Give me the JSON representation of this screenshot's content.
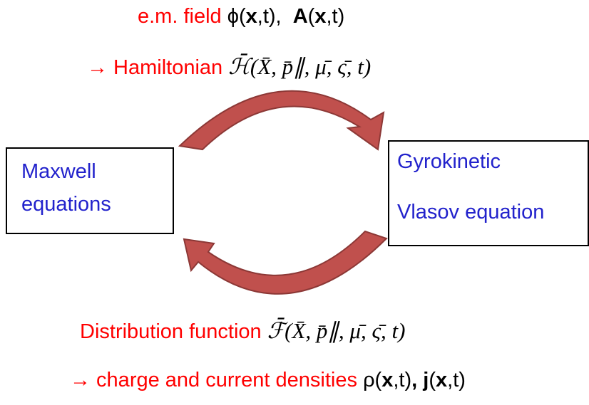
{
  "top": {
    "line1": [
      "e.m. field ",
      "ϕ(",
      "x",
      ",t),  ",
      "A",
      "(",
      "x",
      ",t)"
    ],
    "line2": [
      "→ Hamiltonian ",
      "ℋ̄(X̄, p̄∥, μ̄, ς̄, t)"
    ]
  },
  "left_box": {
    "lines": [
      "Maxwell",
      "equations"
    ]
  },
  "right_box": {
    "lines": [
      "Gyrokinetic",
      "Vlasov equation"
    ]
  },
  "bottom": {
    "line1": [
      "Distribution function ",
      "ℱ̄(X̄, p̄∥, μ̄, ς̄, t)"
    ],
    "line2": [
      "→ charge and current densities ",
      "ρ(",
      "x",
      ",t)",
      ",",
      " ",
      "j",
      "(",
      "x",
      ",t)"
    ]
  }
}
